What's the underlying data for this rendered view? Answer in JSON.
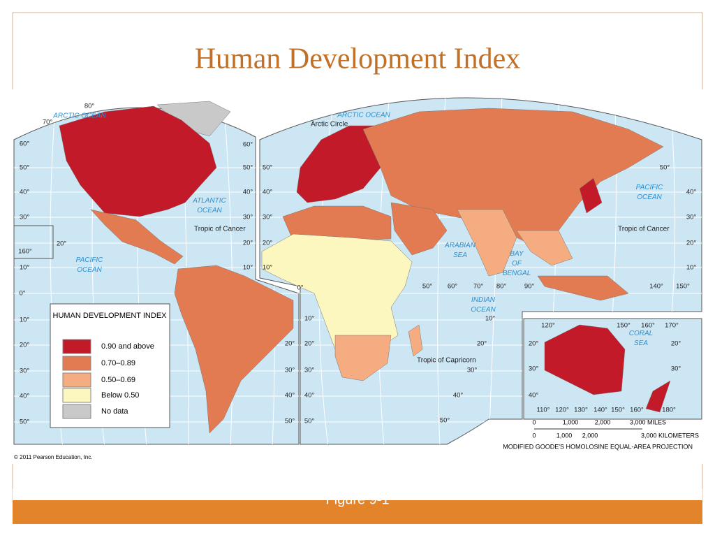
{
  "header": {
    "title": "Human Development Index"
  },
  "legend": {
    "title": "HUMAN DEVELOPMENT INDEX",
    "items": [
      {
        "label": "0.90 and above",
        "color": "#c21a28"
      },
      {
        "label": "0.70–0.89",
        "color": "#e37b52"
      },
      {
        "label": "0.50–0.69",
        "color": "#f4ac80"
      },
      {
        "label": "Below 0.50",
        "color": "#fcf6bf"
      },
      {
        "label": "No data",
        "color": "#c9c9c9"
      }
    ]
  },
  "map": {
    "ocean_color": "#cde6f4",
    "oceans": [
      "ARCTIC OCEAN",
      "ARCTIC OCEAN",
      "ATLANTIC OCEAN",
      "PACIFIC OCEAN",
      "PACIFIC OCEAN",
      "INDIAN OCEAN",
      "ARABIAN SEA",
      "BAY OF BENGAL",
      "CORAL SEA"
    ],
    "lines": [
      "Arctic Circle",
      "Tropic of Cancer",
      "Tropic of Cancer",
      "Tropic of Capricorn"
    ],
    "grid_labels": [
      "80°",
      "70°",
      "60°",
      "50°",
      "40°",
      "30°",
      "20°",
      "160°",
      "10°",
      "0°",
      "10°",
      "20°",
      "30°",
      "40°",
      "50°",
      "60°",
      "50°",
      "40°",
      "30°",
      "20°",
      "10°",
      "20°",
      "30°",
      "40°",
      "50°",
      "50°",
      "40°",
      "30°",
      "20°",
      "10°",
      "0°",
      "10°",
      "20°",
      "30°",
      "40°",
      "50°",
      "50°",
      "60°",
      "70°",
      "80°",
      "90°",
      "140°",
      "150°",
      "50°",
      "40°",
      "30°",
      "20°",
      "10°",
      "10°",
      "20°",
      "30°",
      "40°",
      "50°",
      "120°",
      "150°",
      "160°",
      "170°",
      "20°",
      "20°",
      "30°",
      "30°",
      "40°",
      "110°",
      "120°",
      "130°",
      "140°",
      "150°",
      "160°",
      "180°"
    ],
    "scale": {
      "miles": [
        "0",
        "1,000",
        "2,000",
        "3,000 MILES"
      ],
      "kilometers": [
        "0",
        "1,000",
        "2,000",
        "3,000 KILOMETERS"
      ]
    },
    "projection": "MODIFIED GOODE'S HOMOLOSINE EQUAL-AREA PROJECTION",
    "copyright": "© 2011 Pearson Education, Inc."
  },
  "footer": {
    "caption": "Figure 9-1"
  }
}
